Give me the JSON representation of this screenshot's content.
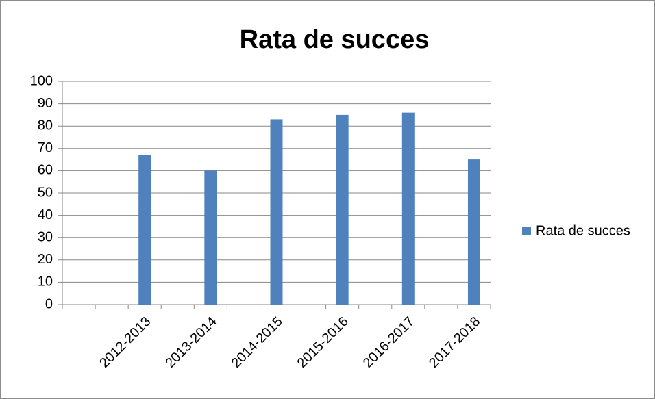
{
  "chart_data": {
    "type": "bar",
    "title": "Rata de succes",
    "categories": [
      null,
      null,
      "2012-2013",
      null,
      "2013-2014",
      null,
      "2014-2015",
      null,
      "2015-2016",
      null,
      "2016-2017",
      null,
      "2017-2018"
    ],
    "series": [
      {
        "name": "Rata de succes",
        "color": "#4f81bd",
        "values": [
          null,
          null,
          67,
          null,
          60,
          null,
          83,
          null,
          85,
          null,
          86,
          null,
          65
        ]
      }
    ],
    "ylim": [
      0,
      100
    ],
    "yticks": [
      0,
      10,
      20,
      30,
      40,
      50,
      60,
      70,
      80,
      90,
      100
    ],
    "grid": true,
    "legend": "right"
  }
}
